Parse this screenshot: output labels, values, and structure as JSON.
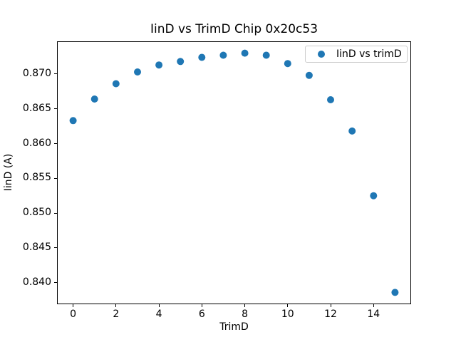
{
  "figure": {
    "title": "IinD vs TrimD Chip 0x20c53",
    "xlabel": "TrimD",
    "ylabel": "IinD (A)",
    "legend_label": "IinD vs trimD"
  },
  "colors": {
    "marker": "#1f77b4",
    "axis": "#000000",
    "legend_border": "#cccccc"
  },
  "chart_data": {
    "type": "scatter",
    "title": "IinD vs TrimD Chip 0x20c53",
    "xlabel": "TrimD",
    "ylabel": "IinD (A)",
    "legend": [
      "IinD vs trimD"
    ],
    "legend_position": "upper right",
    "grid": false,
    "marker": "o",
    "marker_color": "#1f77b4",
    "x": [
      0,
      1,
      2,
      3,
      4,
      5,
      6,
      7,
      8,
      9,
      10,
      11,
      12,
      13,
      14,
      15
    ],
    "y": [
      0.8633,
      0.8664,
      0.8686,
      0.8703,
      0.8713,
      0.8718,
      0.8724,
      0.8727,
      0.873,
      0.8727,
      0.8715,
      0.8698,
      0.8663,
      0.8618,
      0.8525,
      0.8386
    ],
    "xlim": [
      -0.75,
      15.75
    ],
    "ylim": [
      0.8369,
      0.8747
    ],
    "x_ticks": [
      0,
      2,
      4,
      6,
      8,
      10,
      12,
      14
    ],
    "x_tick_labels": [
      "0",
      "2",
      "4",
      "6",
      "8",
      "10",
      "12",
      "14"
    ],
    "y_ticks": [
      0.84,
      0.845,
      0.85,
      0.855,
      0.86,
      0.865,
      0.87
    ],
    "y_tick_labels": [
      "0.840",
      "0.845",
      "0.850",
      "0.855",
      "0.860",
      "0.865",
      "0.870"
    ]
  }
}
